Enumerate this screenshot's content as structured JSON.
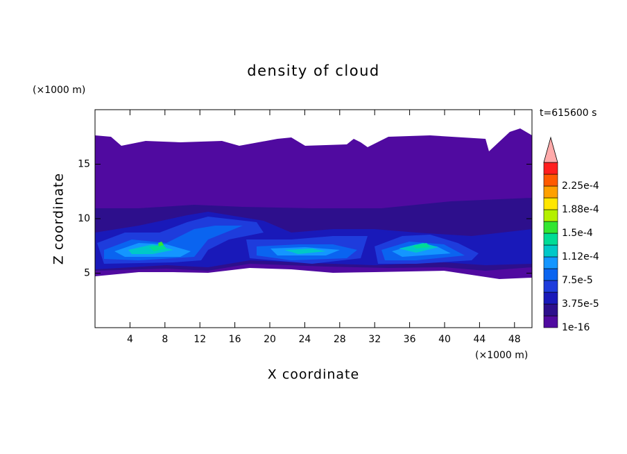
{
  "chart_data": {
    "type": "contour",
    "title": "density of cloud",
    "xlabel": "X coordinate",
    "ylabel": "Z coordinate",
    "xunit": "(×1000 m)",
    "yunit": "(×1000 m)",
    "annotation": "t=615600 s",
    "xlim": [
      0,
      50
    ],
    "ylim": [
      0,
      20
    ],
    "xticks": [
      4,
      8,
      12,
      16,
      20,
      24,
      28,
      32,
      36,
      40,
      44,
      48
    ],
    "yticks": [
      5,
      10,
      15
    ],
    "levels": [
      1e-16,
      {
        "value": 1.875e-05,
        "label": ""
      },
      {
        "value": 3.75e-05,
        "label": "3.75e-5"
      },
      {
        "value": 5.625e-05,
        "label": ""
      },
      {
        "value": 7.5e-05,
        "label": "7.5e-5"
      },
      {
        "value": 9.375e-05,
        "label": ""
      },
      {
        "value": 0.0001125,
        "label": "1.12e-4"
      },
      {
        "value": 0.00013125,
        "label": ""
      },
      {
        "value": 0.00015,
        "label": "1.5e-4"
      },
      {
        "value": 0.00016875,
        "label": ""
      },
      {
        "value": 0.0001875,
        "label": "1.88e-4"
      },
      {
        "value": 0.00020625,
        "label": ""
      },
      {
        "value": 0.000225,
        "label": "2.25e-4"
      },
      {
        "value": 0.00024375,
        "label": ""
      }
    ],
    "colors": [
      "#500aa0",
      "#2d0f8c",
      "#1919b9",
      "#1e3cdc",
      "#0a64f0",
      "#1496ff",
      "#00c8c8",
      "#00dc96",
      "#32e632",
      "#b4f000",
      "#ffe600",
      "#ffa000",
      "#ff5a00",
      "#ff1e1e"
    ],
    "extend_color": "#ffaaaa"
  }
}
